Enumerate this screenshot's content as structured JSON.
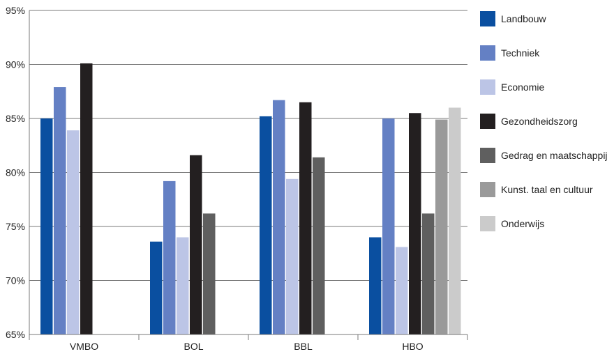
{
  "chart_data": {
    "type": "bar",
    "title": "",
    "xlabel": "",
    "ylabel": "",
    "ylim": [
      65,
      95
    ],
    "yticks": [
      65,
      70,
      75,
      80,
      85,
      90,
      95
    ],
    "tick_format": "{v}%",
    "grid": "horizontal",
    "legend_position": "right",
    "categories": [
      "VMBO",
      "BOL",
      "BBL",
      "HBO"
    ],
    "series": [
      {
        "name": "Landbouw",
        "color": "#0a4fa0",
        "values": [
          85,
          73.6,
          85.2,
          74
        ]
      },
      {
        "name": "Techniek",
        "color": "#6480c4",
        "values": [
          87.9,
          79.2,
          86.7,
          85
        ]
      },
      {
        "name": "Economie",
        "color": "#bcc5e6",
        "values": [
          83.9,
          74,
          79.4,
          73.1
        ]
      },
      {
        "name": "Gezondheidszorg",
        "color": "#231f20",
        "values": [
          90.1,
          81.6,
          86.5,
          85.5
        ]
      },
      {
        "name": "Gedrag en maatschappij",
        "color": "#5f5f5f",
        "values": [
          null,
          76.2,
          81.4,
          76.2
        ]
      },
      {
        "name": "Kunst. taal en cultuur",
        "color": "#9a9a9a",
        "values": [
          null,
          null,
          null,
          84.9
        ]
      },
      {
        "name": "Onderwijs",
        "color": "#cbcbcb",
        "values": [
          null,
          null,
          null,
          86
        ]
      }
    ]
  }
}
